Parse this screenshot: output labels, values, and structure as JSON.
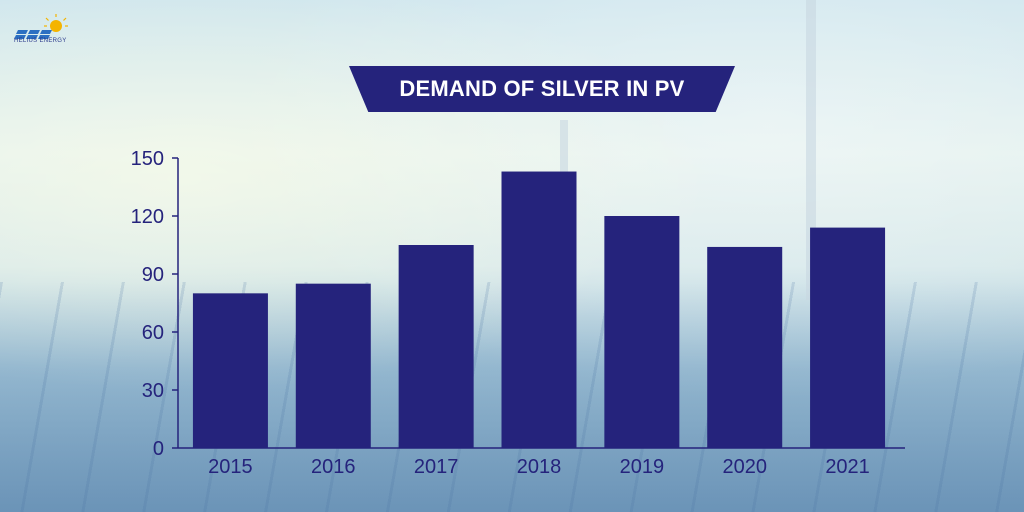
{
  "brand": {
    "logo_text": "HELIUS ENERGY"
  },
  "chart_data": {
    "type": "bar",
    "title": "DEMAND OF SILVER IN PV",
    "xlabel": "",
    "ylabel": "",
    "categories": [
      "2015",
      "2016",
      "2017",
      "2018",
      "2019",
      "2020",
      "2021"
    ],
    "values": [
      80,
      85,
      105,
      143,
      120,
      104,
      114
    ],
    "ylim": [
      0,
      150
    ],
    "yticks": [
      "0",
      "30",
      "60",
      "90",
      "120",
      "150"
    ],
    "grid": false,
    "colors": {
      "bar": "#25237c",
      "axis": "#25237c",
      "title_bg": "#25237c",
      "title_text": "#ffffff"
    }
  }
}
